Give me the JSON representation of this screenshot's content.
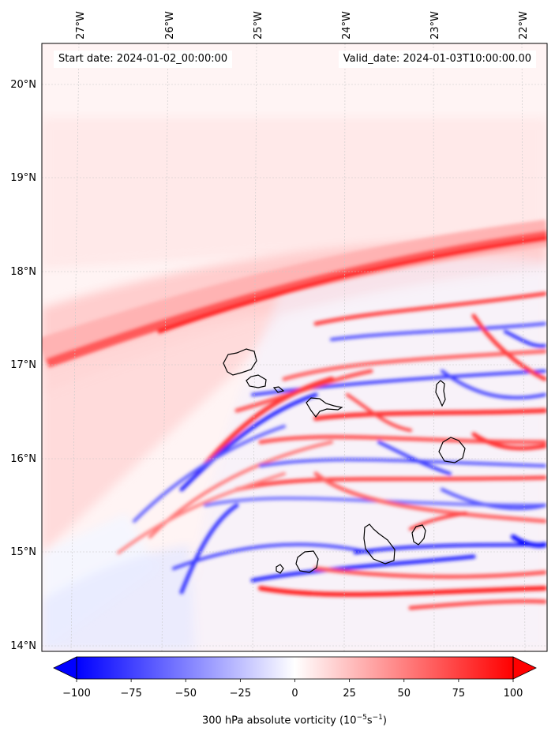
{
  "chart_data": {
    "type": "heatmap",
    "title": "",
    "start_date_text": "Start date: 2024-01-02_00:00:00",
    "valid_date_text": "Valid_date: 2024-01-03T10:00:00.00",
    "x_ticks": [
      "27°W",
      "26°W",
      "25°W",
      "24°W",
      "23°W",
      "22°W"
    ],
    "y_ticks": [
      "20°N",
      "19°N",
      "18°N",
      "17°N",
      "16°N",
      "15°N",
      "14°N"
    ],
    "xlim": [
      -27.3,
      -21.7
    ],
    "ylim": [
      13.95,
      20.45
    ],
    "colorbar": {
      "label_prefix": "300 hPa absolute vorticity (10",
      "label_exp1": "−5",
      "label_mid": "s",
      "label_exp2": "−1",
      "label_suffix": ")",
      "ticks": [
        "−100",
        "−75",
        "−50",
        "−25",
        "0",
        "25",
        "50",
        "75",
        "100"
      ],
      "range": [
        -100,
        100
      ],
      "extend": "both",
      "colormap": "bwr"
    },
    "colors": {
      "negative": "#0000ff",
      "positive": "#ff0000",
      "zero": "#ffffff"
    },
    "grid": true
  }
}
